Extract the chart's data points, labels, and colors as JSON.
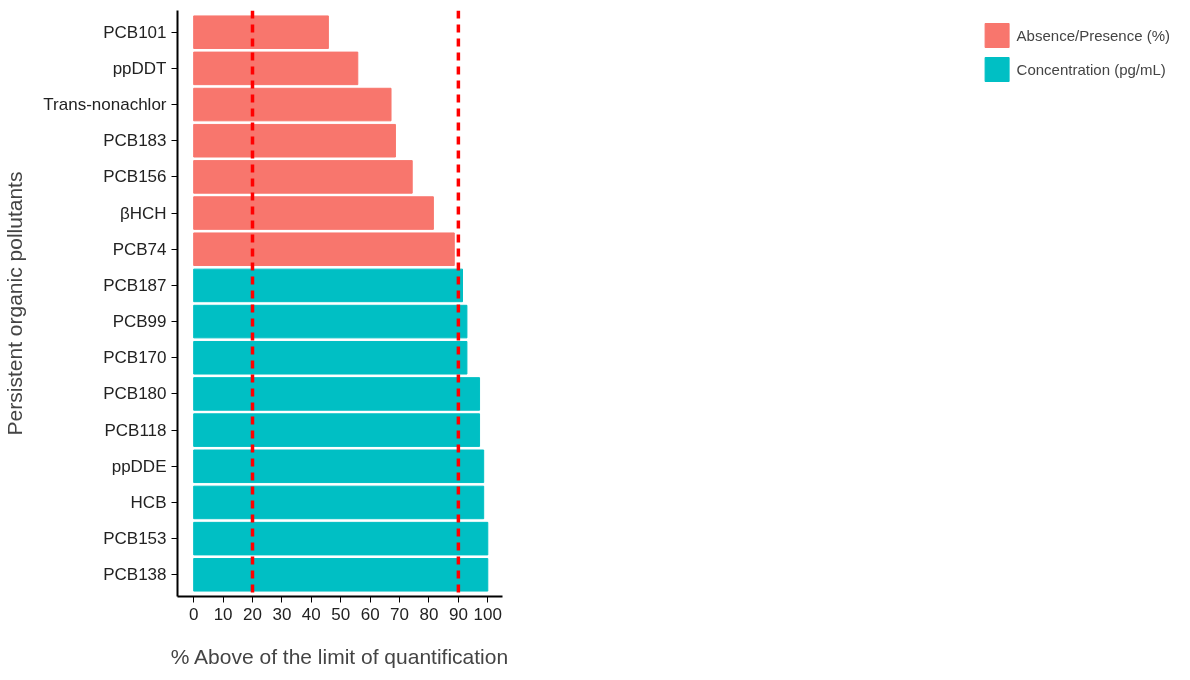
{
  "chart_data": {
    "type": "bar",
    "orientation": "horizontal",
    "xlabel": "% Above of the limit of quantification",
    "ylabel": "Persistent organic pollutants",
    "categories": [
      "PCB101",
      "ppDDT",
      "Trans-nonachlor",
      "PCB183",
      "PCB156",
      "βHCH",
      "PCB74",
      "PCB187",
      "PCB99",
      "PCB170",
      "PCB180",
      "PCB118",
      "ppDDE",
      "HCB",
      "PCB153",
      "PCB138"
    ],
    "series": [
      {
        "name": "Absence/Presence (%)",
        "color": "#f8766d",
        "values": [
          45.8,
          55.8,
          67.1,
          68.6,
          74.3,
          81.5,
          88.6,
          null,
          null,
          null,
          null,
          null,
          null,
          null,
          null,
          null
        ]
      },
      {
        "name": "Concentration (pg/mL)",
        "color": "#00bfc4",
        "values": [
          null,
          null,
          null,
          null,
          null,
          null,
          null,
          91.4,
          92.9,
          92.9,
          97.2,
          97.2,
          98.6,
          98.6,
          100,
          100
        ]
      }
    ],
    "xlim": [
      -5.5,
      105
    ],
    "xticks": [
      0,
      10,
      20,
      30,
      40,
      50,
      60,
      70,
      80,
      90,
      100
    ],
    "ref_lines": [
      {
        "axis": "x",
        "value": 20,
        "color": "#ff0000",
        "line_style": "dashed"
      },
      {
        "axis": "x",
        "value": 90,
        "color": "#ff0000",
        "line_style": "dashed"
      }
    ],
    "grid": false,
    "legend": "right"
  }
}
